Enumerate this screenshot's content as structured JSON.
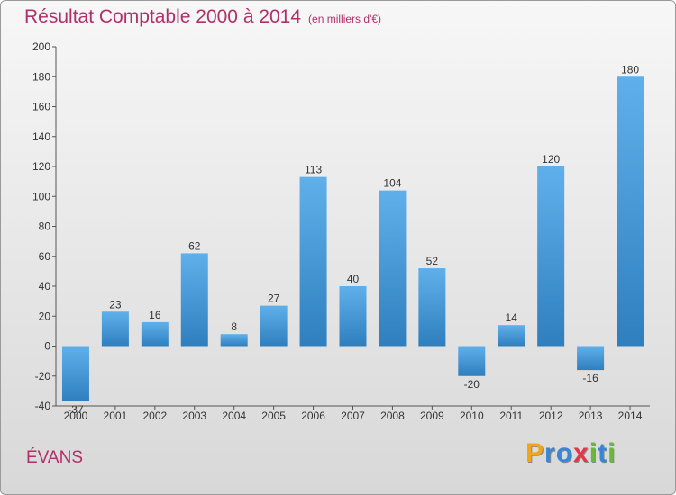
{
  "title": "Résultat Comptable 2000 à 2014",
  "title_unit": "(en milliers d'€)",
  "city": "ÉVANS",
  "logo": {
    "letters": [
      "P",
      "r",
      "o",
      "x",
      "i",
      "t",
      "i"
    ],
    "colors": [
      "#f2a51a",
      "#3a86d4",
      "#3a86d4",
      "#e8344a",
      "#69b83c",
      "#3a86d4",
      "#69b83c"
    ]
  },
  "colors": {
    "title": "#b0306a",
    "bar_top": "#5fb0ea",
    "bar_bottom": "#2f7fbf"
  },
  "chart_data": {
    "type": "bar",
    "title": "Résultat Comptable 2000 à 2014",
    "ylabel": "en milliers d'€",
    "xlabel": "",
    "categories": [
      "2000",
      "2001",
      "2002",
      "2003",
      "2004",
      "2005",
      "2006",
      "2007",
      "2008",
      "2009",
      "2010",
      "2011",
      "2012",
      "2013",
      "2014"
    ],
    "values": [
      -37,
      23,
      16,
      62,
      8,
      27,
      113,
      40,
      104,
      52,
      -20,
      14,
      120,
      -16,
      180
    ],
    "ylim": [
      -40,
      200
    ],
    "yticks": [
      -40,
      -20,
      0,
      20,
      40,
      60,
      80,
      100,
      120,
      140,
      160,
      180,
      200
    ],
    "grid": false
  }
}
